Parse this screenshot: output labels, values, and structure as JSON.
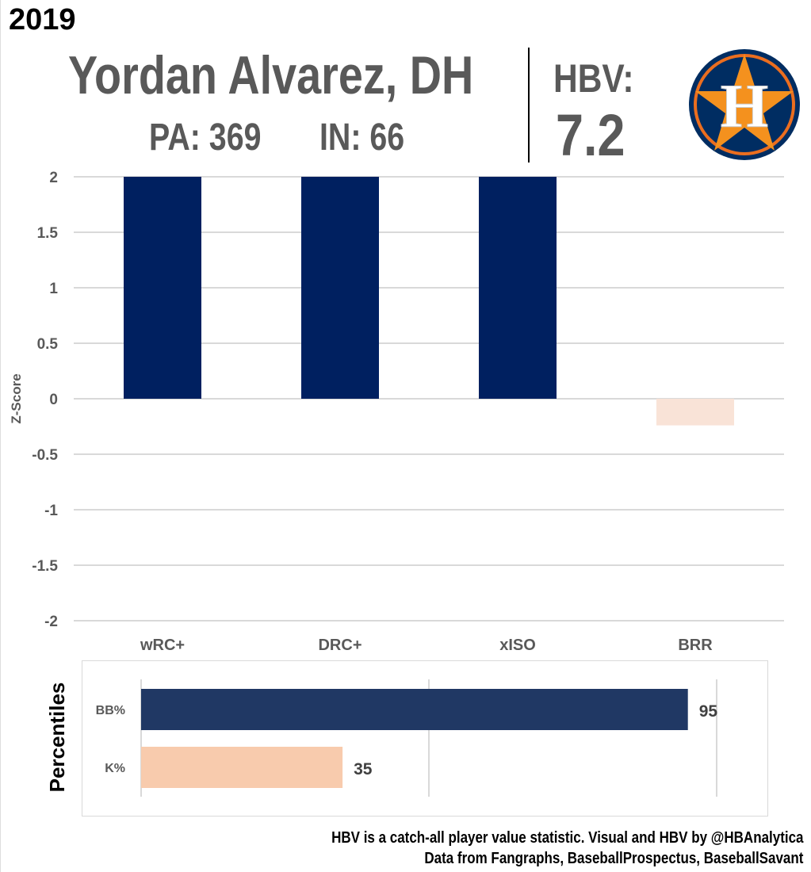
{
  "header": {
    "year": "2019",
    "player": "Yordan Alvarez, DH",
    "pa_label": "PA: 369",
    "in_label": "IN: 66",
    "hbv_label": "HBV:",
    "hbv_value": "7.2",
    "logo_letter": "H"
  },
  "colors": {
    "navy": "#002060",
    "peach": "#f9e3d7",
    "pct_navy": "#203864",
    "pct_peach": "#f8cbad",
    "text": "#595959"
  },
  "chart_data": [
    {
      "type": "bar",
      "ylabel": "Z-Score",
      "ylim": [
        -2,
        2
      ],
      "yticks": [
        "2",
        "1.5",
        "1",
        "0.5",
        "0",
        "-0.5",
        "-1",
        "-1.5",
        "-2"
      ],
      "ytick_values": [
        2,
        1.5,
        1,
        0.5,
        0,
        -0.5,
        -1,
        -1.5,
        -2
      ],
      "categories": [
        "wRC+",
        "DRC+",
        "xISO",
        "BRR"
      ],
      "values": [
        2,
        2,
        2,
        -0.24
      ],
      "grid": true
    },
    {
      "type": "bar",
      "orientation": "horizontal",
      "ylabel": "Percentiles",
      "categories": [
        "BB%",
        "K%"
      ],
      "values": [
        95,
        35
      ],
      "value_labels": [
        "95",
        "35"
      ],
      "xlim": [
        0,
        100
      ]
    }
  ],
  "footer": {
    "line1": "HBV is a catch-all player value statistic. Visual and HBV by @HBAnalytica",
    "line2": "Data from Fangraphs, BaseballProspectus, BaseballSavant"
  }
}
